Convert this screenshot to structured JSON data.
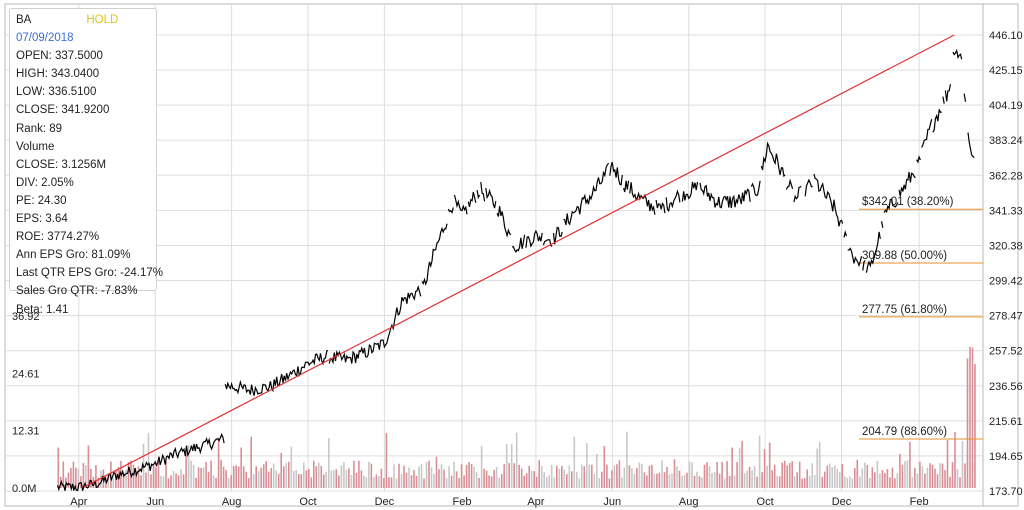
{
  "info": {
    "ticker": "BA",
    "rating": "HOLD",
    "date": "07/09/2018",
    "lines": [
      "OPEN: 337.5000",
      "HIGH: 343.0400",
      "LOW: 336.5100",
      "CLOSE: 341.9200",
      "Rank: 89",
      "Volume",
      "CLOSE: 3.1256M",
      "DIV: 2.05%",
      "PE: 24.30",
      "EPS: 3.64",
      "ROE: 3774.27%",
      "Ann EPS Gro: 81.09%",
      "Last QTR EPS Gro: -24.17%",
      "Sales Gro QTR: -7.83%",
      "Beta: 1.41"
    ]
  },
  "colors": {
    "price": "#000000",
    "trendline": "#e03030",
    "fib": "#e8902a",
    "volume": "#d98e96",
    "volume_alt": "#c8c8c8",
    "grid": "#dddddd"
  },
  "chart_data": {
    "type": "line",
    "x_ticks": [
      "Apr",
      "Jun",
      "Aug",
      "Oct",
      "Dec",
      "Feb",
      "Apr",
      "Jun",
      "Aug",
      "Oct",
      "Dec",
      "Feb"
    ],
    "y_ticks": [
      "446.10",
      "425.15",
      "404.19",
      "383.24",
      "362.28",
      "341.33",
      "320.38",
      "299.42",
      "278.47",
      "257.52",
      "236.56",
      "215.61",
      "194.65",
      "173.70"
    ],
    "ylim": [
      173.7,
      446.1
    ],
    "volume_ticks": [
      "36.92",
      "24.61",
      "12.31",
      "0.0M"
    ],
    "volume_ylim": [
      0,
      36.92
    ],
    "series": [
      {
        "x": [
          "2017-03-15",
          "2017-04-01",
          "2017-04-15",
          "2017-05-01",
          "2017-05-15",
          "2017-06-01",
          "2017-06-15",
          "2017-07-01",
          "2017-07-15",
          "2017-07-26",
          "2017-07-27",
          "2017-08-15",
          "2017-09-01",
          "2017-09-15",
          "2017-10-01",
          "2017-10-15",
          "2017-11-01",
          "2017-11-15",
          "2017-12-01",
          "2017-12-15",
          "2018-01-01",
          "2018-01-10",
          "2018-01-25",
          "2018-02-01",
          "2018-02-15",
          "2018-03-01",
          "2018-03-15",
          "2018-04-01",
          "2018-04-15",
          "2018-05-01",
          "2018-05-15",
          "2018-06-01",
          "2018-06-10",
          "2018-06-25",
          "2018-07-09",
          "2018-07-25",
          "2018-08-10",
          "2018-08-25",
          "2018-09-10",
          "2018-09-25",
          "2018-10-03",
          "2018-10-12",
          "2018-10-25",
          "2018-11-10",
          "2018-11-25",
          "2018-12-10",
          "2018-12-24",
          "2019-01-05",
          "2019-01-20",
          "2019-01-31",
          "2019-02-10",
          "2019-02-25",
          "2019-03-01",
          "2019-03-07",
          "2019-03-12",
          "2019-03-18"
        ],
        "values": [
          176,
          176,
          178,
          183,
          186,
          190,
          195,
          199,
          202,
          205,
          237,
          234,
          236,
          242,
          250,
          254,
          252,
          256,
          262,
          287,
          295,
          316,
          347,
          338,
          354,
          344,
          320,
          326,
          324,
          340,
          350,
          368,
          358,
          347,
          341.92,
          351,
          355,
          346,
          347,
          354,
          380,
          368,
          348,
          359,
          343,
          314,
          306,
          339,
          355,
          368,
          390,
          414,
          440,
          431,
          388,
          365
        ]
      }
    ],
    "fib_levels": [
      {
        "price": 342.01,
        "label": "$342.01 (38.20%)"
      },
      {
        "price": 309.88,
        "label": "309.88 (50.00%)"
      },
      {
        "price": 277.75,
        "label": "277.75 (61.80%)"
      },
      {
        "price": 204.79,
        "label": "204.79 (88.60%)"
      }
    ],
    "trendline": {
      "start": {
        "x": "2017-04-05",
        "y": 176
      },
      "end": {
        "x": "2019-03-01",
        "y": 446.1
      }
    },
    "grid": true
  }
}
